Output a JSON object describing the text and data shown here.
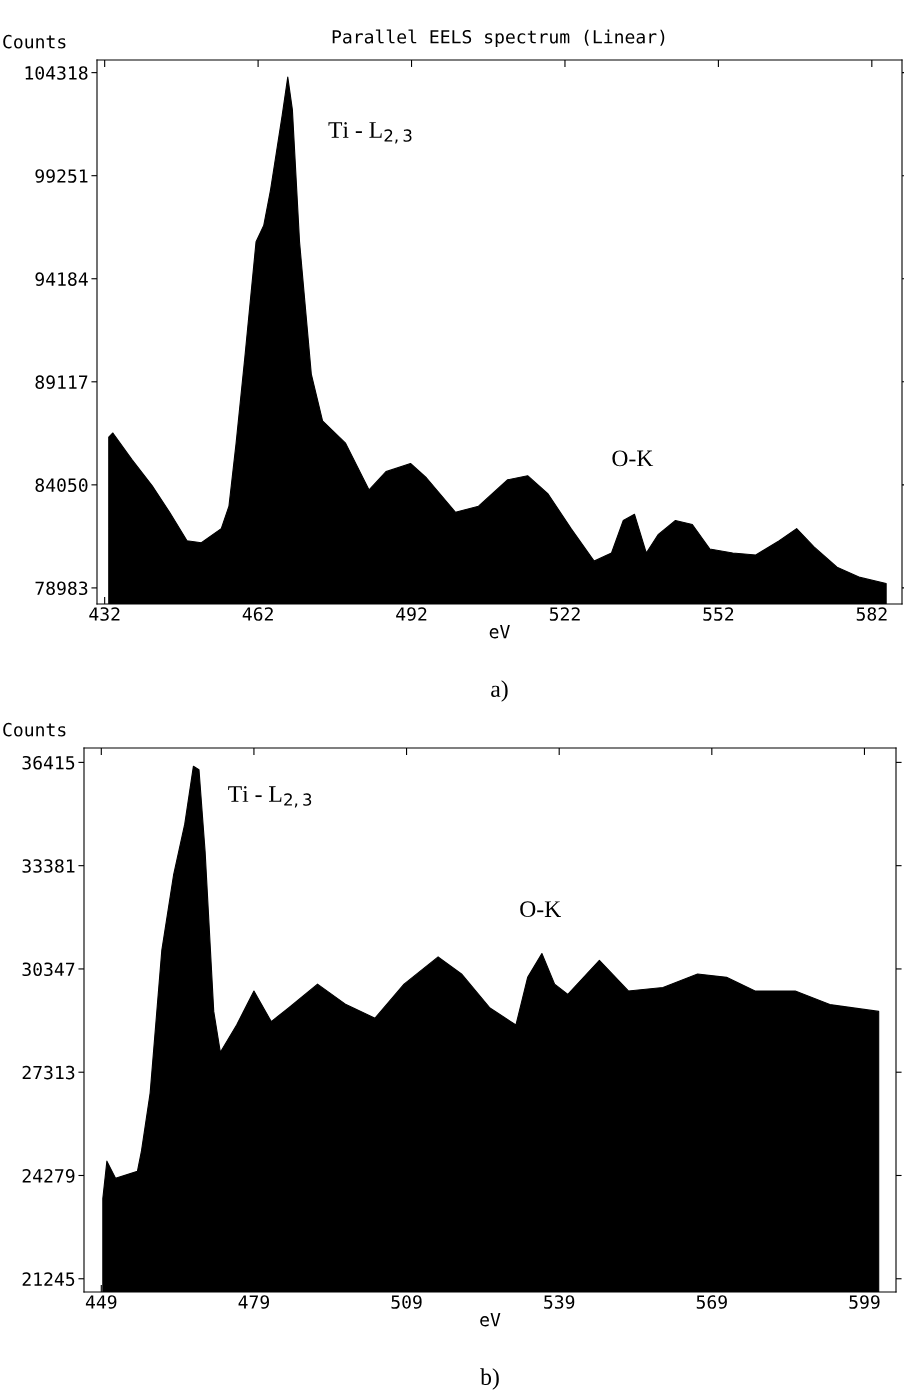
{
  "chart_data": [
    {
      "type": "area",
      "title": "Parallel EELS spectrum (Linear)",
      "xlabel": "eV",
      "ylabel": "Counts",
      "x": [
        432.8,
        433.6,
        437.3,
        441.3,
        444.7,
        448.1,
        450.9,
        454.8,
        456.3,
        457.7,
        459.4,
        461.6,
        463.1,
        464.4,
        466.7,
        467.8,
        468.7,
        470.1,
        472.4,
        474.6,
        479.1,
        483.7,
        487.0,
        491.8,
        494.9,
        500.6,
        505.1,
        510.8,
        514.7,
        518.7,
        523.2,
        527.7,
        531.1,
        533.4,
        535.6,
        537.9,
        540.2,
        543.6,
        546.9,
        550.3,
        554.8,
        559.3,
        563.9,
        567.3,
        570.7,
        575.2,
        579.7,
        584.8
      ],
      "series": [
        {
          "color": "#000000",
          "values": [
            86400,
            86600,
            85300,
            84000,
            82700,
            81300,
            81200,
            81900,
            83000,
            86100,
            90300,
            96000,
            96800,
            98500,
            102200,
            104100,
            102500,
            96000,
            89500,
            87200,
            86100,
            83800,
            84700,
            85100,
            84400,
            82700,
            83000,
            84300,
            84500,
            83600,
            81900,
            80300,
            80700,
            82300,
            82600,
            80700,
            81600,
            82300,
            82100,
            80900,
            80700,
            80600,
            81300,
            81900,
            81000,
            80000,
            79500,
            79200
          ]
        }
      ],
      "xlim": [
        430.5,
        587.9
      ],
      "ylim": [
        78192,
        104939
      ],
      "xticks": [
        432,
        462,
        492,
        522,
        552,
        582
      ],
      "yticks": [
        78983,
        84050,
        89117,
        94184,
        99251,
        104318
      ],
      "annotations": [
        "Ti - L$_{2,3}$",
        "O-K",
        "a)"
      ]
    },
    {
      "type": "area",
      "xlabel": "eV",
      "ylabel": "Counts",
      "x": [
        449.3,
        450.1,
        451.8,
        456.1,
        456.9,
        458.6,
        460.9,
        463.2,
        465.4,
        467.1,
        468.2,
        469.4,
        471.1,
        472.4,
        475.6,
        479.0,
        482.4,
        485.8,
        491.5,
        497.1,
        502.8,
        508.5,
        515.2,
        519.8,
        525.4,
        530.5,
        532.8,
        535.6,
        538.1,
        540.7,
        546.9,
        552.6,
        559.4,
        566.2,
        571.9,
        577.5,
        585.4,
        592.2,
        601.8
      ],
      "series": [
        {
          "color": "#000000",
          "values": [
            23600,
            24700,
            24200,
            24400,
            25000,
            26700,
            30900,
            33100,
            34600,
            36300,
            36200,
            33800,
            29100,
            27900,
            28700,
            29700,
            28800,
            29200,
            29900,
            29300,
            28900,
            29900,
            30700,
            30200,
            29200,
            28700,
            30100,
            30800,
            29900,
            29600,
            30600,
            29700,
            29800,
            30200,
            30100,
            29700,
            29700,
            29300,
            29100
          ]
        }
      ],
      "xlim": [
        445.6,
        605.2
      ],
      "ylim": [
        20856,
        36838
      ],
      "xticks": [
        449,
        479,
        509,
        539,
        569,
        599
      ],
      "yticks": [
        21245,
        24279,
        27313,
        30347,
        33381,
        36415
      ],
      "annotations": [
        "Ti - L$_{2,3}$",
        "O-K",
        "b)"
      ]
    }
  ]
}
